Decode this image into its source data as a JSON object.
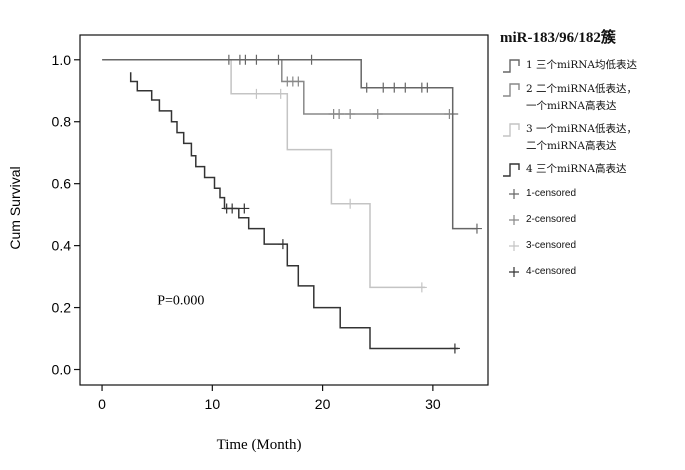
{
  "chart_data": {
    "type": "line",
    "title": "",
    "xlabel": "Time  (Month)",
    "ylabel": "Cum Survival",
    "xlim": [
      -2,
      35
    ],
    "ylim": [
      -0.05,
      1.08
    ],
    "xticks": [
      0,
      10,
      20,
      30
    ],
    "yticks": [
      0.0,
      0.2,
      0.4,
      0.6,
      0.8,
      1.0
    ],
    "xtick_labels": [
      "0",
      "10",
      "20",
      "30"
    ],
    "ytick_labels": [
      "0.0",
      "0.2",
      "0.4",
      "0.6",
      "0.8",
      "1.0"
    ],
    "annotation": "P=0.000",
    "annotation_pos": {
      "x": 5,
      "y": 0.21
    },
    "legend_title": "miR-183/96/182簇",
    "legend_position": "right",
    "series": [
      {
        "name": "1",
        "legend_lines": [
          "1 三个miRNA均低表达"
        ],
        "color": "#666666",
        "steps": [
          [
            0,
            1.0
          ],
          [
            23.5,
            1.0
          ],
          [
            23.5,
            0.91
          ],
          [
            31.8,
            0.91
          ],
          [
            31.8,
            0.455
          ],
          [
            34,
            0.455
          ]
        ],
        "censored": [
          [
            11.5,
            1.0
          ],
          [
            12.5,
            1.0
          ],
          [
            13,
            1.0
          ],
          [
            14,
            1.0
          ],
          [
            16,
            1.0
          ],
          [
            19,
            1.0
          ],
          [
            24,
            0.91
          ],
          [
            25.5,
            0.91
          ],
          [
            26.5,
            0.91
          ],
          [
            27.5,
            0.91
          ],
          [
            29,
            0.91
          ],
          [
            29.5,
            0.91
          ],
          [
            34,
            0.455
          ]
        ]
      },
      {
        "name": "2",
        "legend_lines": [
          "2 二个miRNA低表达，",
          "一个miRNA高表达"
        ],
        "color": "#888888",
        "steps": [
          [
            2.5,
            1.0
          ],
          [
            16.3,
            1.0
          ],
          [
            16.3,
            0.93
          ],
          [
            18.3,
            0.93
          ],
          [
            18.3,
            0.825
          ],
          [
            32.3,
            0.825
          ]
        ],
        "censored": [
          [
            16.8,
            0.93
          ],
          [
            17.3,
            0.93
          ],
          [
            17.8,
            0.93
          ],
          [
            21,
            0.825
          ],
          [
            21.5,
            0.825
          ],
          [
            22.5,
            0.825
          ],
          [
            25,
            0.825
          ],
          [
            31.5,
            0.825
          ]
        ]
      },
      {
        "name": "3",
        "legend_lines": [
          "3 一个miRNA低表达，",
          "二个miRNA高表达"
        ],
        "color": "#c4c4c4",
        "steps": [
          [
            2.5,
            1.0
          ],
          [
            11.7,
            1.0
          ],
          [
            11.7,
            0.89
          ],
          [
            16.8,
            0.89
          ],
          [
            16.8,
            0.71
          ],
          [
            20.8,
            0.71
          ],
          [
            20.8,
            0.535
          ],
          [
            24.3,
            0.535
          ],
          [
            24.3,
            0.265
          ],
          [
            29.3,
            0.265
          ]
        ],
        "censored": [
          [
            14,
            0.89
          ],
          [
            16.2,
            0.89
          ],
          [
            22.5,
            0.535
          ],
          [
            29,
            0.265
          ]
        ]
      },
      {
        "name": "4",
        "legend_lines": [
          "4 三个miRNA高表达"
        ],
        "color": "#333333",
        "steps": [
          [
            2.6,
            0.96
          ],
          [
            2.6,
            0.93
          ],
          [
            3.2,
            0.93
          ],
          [
            3.2,
            0.9
          ],
          [
            4.5,
            0.9
          ],
          [
            4.5,
            0.87
          ],
          [
            5.2,
            0.87
          ],
          [
            5.2,
            0.835
          ],
          [
            6.3,
            0.835
          ],
          [
            6.3,
            0.8
          ],
          [
            6.8,
            0.8
          ],
          [
            6.8,
            0.765
          ],
          [
            7.4,
            0.765
          ],
          [
            7.4,
            0.73
          ],
          [
            8.1,
            0.73
          ],
          [
            8.1,
            0.69
          ],
          [
            8.5,
            0.69
          ],
          [
            8.5,
            0.655
          ],
          [
            9.3,
            0.655
          ],
          [
            9.3,
            0.62
          ],
          [
            10.2,
            0.62
          ],
          [
            10.2,
            0.585
          ],
          [
            10.7,
            0.585
          ],
          [
            10.7,
            0.555
          ],
          [
            11.1,
            0.555
          ],
          [
            11.1,
            0.52
          ],
          [
            12.4,
            0.52
          ],
          [
            12.4,
            0.49
          ],
          [
            13.3,
            0.49
          ],
          [
            13.3,
            0.455
          ],
          [
            14.7,
            0.455
          ],
          [
            14.7,
            0.405
          ],
          [
            16.8,
            0.405
          ],
          [
            16.8,
            0.335
          ],
          [
            17.8,
            0.335
          ],
          [
            17.8,
            0.27
          ],
          [
            19.2,
            0.27
          ],
          [
            19.2,
            0.2
          ],
          [
            21.6,
            0.2
          ],
          [
            21.6,
            0.135
          ],
          [
            24.3,
            0.135
          ],
          [
            24.3,
            0.068
          ],
          [
            32.3,
            0.068
          ]
        ],
        "censored": [
          [
            11.3,
            0.52
          ],
          [
            11.8,
            0.52
          ],
          [
            12.9,
            0.52
          ],
          [
            16.4,
            0.405
          ],
          [
            32,
            0.068
          ]
        ]
      }
    ],
    "censored_labels": [
      "1-censored",
      "2-censored",
      "3-censored",
      "4-censored"
    ]
  }
}
